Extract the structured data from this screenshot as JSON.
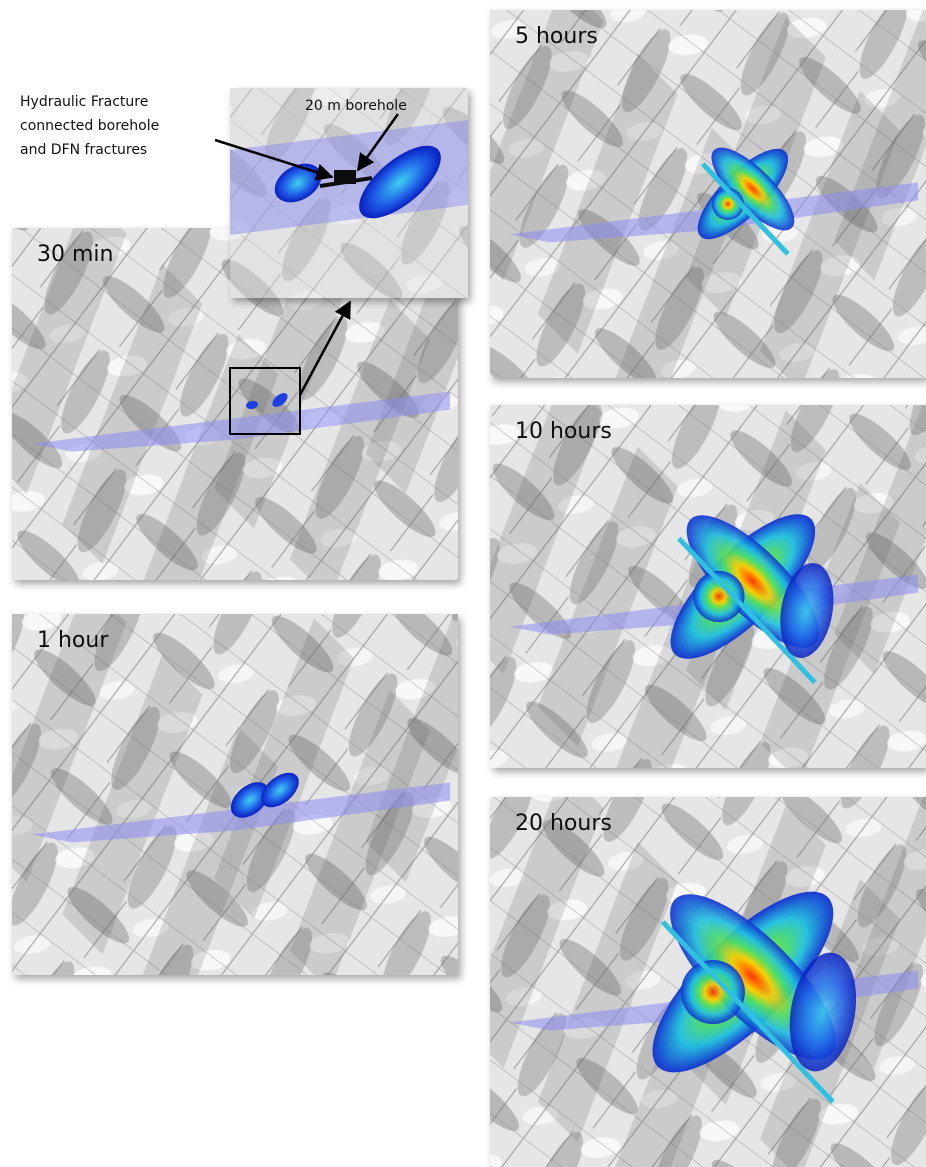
{
  "inset": {
    "annotation_lines": [
      "Hydraulic Fracture",
      "connected borehole",
      "and DFN fractures"
    ],
    "borehole_label": "20 m borehole"
  },
  "panels": [
    {
      "label": "30 min"
    },
    {
      "label": "1 hour"
    },
    {
      "label": "5 hours"
    },
    {
      "label": "10 hours"
    },
    {
      "label": "20 hours"
    }
  ]
}
